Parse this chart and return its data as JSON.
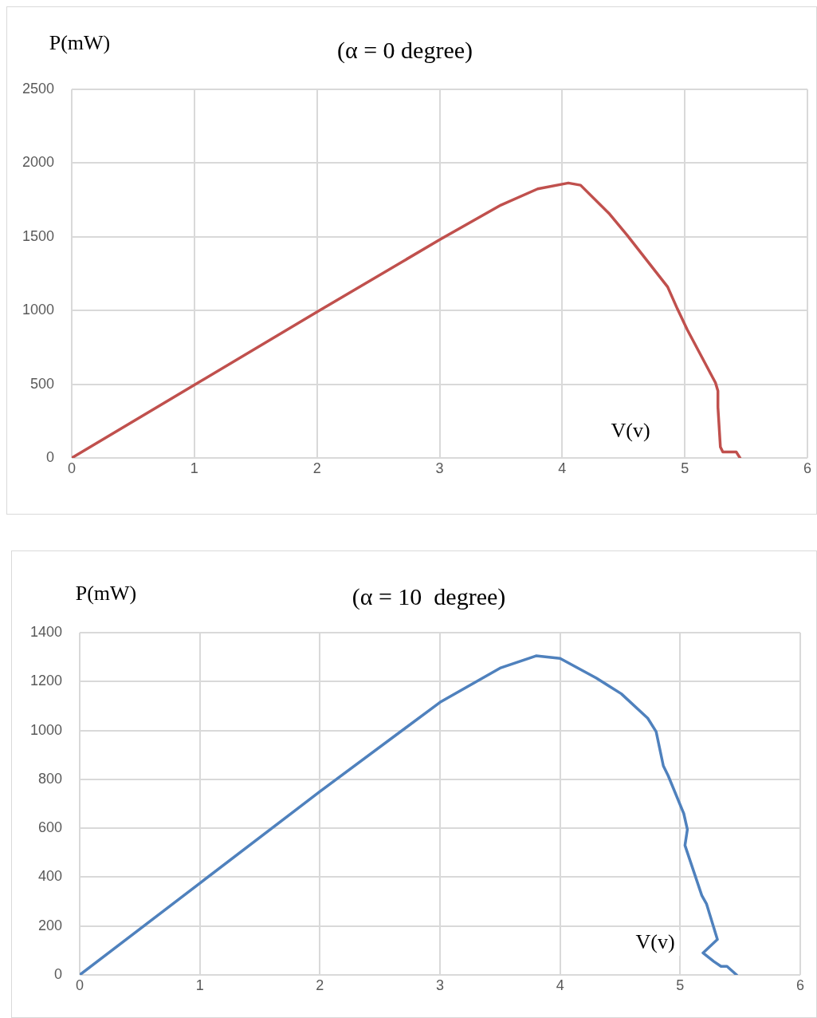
{
  "chart_data": [
    {
      "type": "line",
      "title": "(α = 0 degree)",
      "xlabel": "V(v)",
      "ylabel": "P(mW)",
      "xlim": [
        0,
        6
      ],
      "xticks": [
        0,
        1,
        2,
        3,
        4,
        5,
        6
      ],
      "ylim": [
        0,
        2500
      ],
      "yticks": [
        0,
        500,
        1000,
        1500,
        2000,
        2500
      ],
      "grid": true,
      "legend": false,
      "marker": "none",
      "line_style": "solid",
      "series": [
        {
          "color": "#c0504d",
          "x": [
            0,
            1,
            2,
            3,
            3.5,
            3.8,
            4.05,
            4.15,
            4.38,
            4.53,
            4.86,
            4.94,
            5.02,
            5.25,
            5.27,
            5.27,
            5.29,
            5.31,
            5.42,
            5.45
          ],
          "values": [
            0,
            495,
            990,
            1480,
            1715,
            1825,
            1865,
            1850,
            1660,
            1510,
            1160,
            1010,
            870,
            510,
            455,
            345,
            75,
            40,
            40,
            0
          ]
        }
      ]
    },
    {
      "type": "line",
      "title": "(α = 10  degree)",
      "xlabel": "V(v)",
      "ylabel": "P(mW)",
      "xlim": [
        0,
        6
      ],
      "xticks": [
        0,
        1,
        2,
        3,
        4,
        5,
        6
      ],
      "ylim": [
        0,
        1400
      ],
      "yticks": [
        0,
        200,
        400,
        600,
        800,
        1000,
        1200,
        1400
      ],
      "grid": true,
      "legend": false,
      "marker": "none",
      "line_style": "solid",
      "series": [
        {
          "color": "#4f81bd",
          "x": [
            0,
            1,
            2,
            3,
            3.5,
            3.8,
            4,
            4.3,
            4.51,
            4.73,
            4.8,
            4.86,
            4.9,
            5.03,
            5.06,
            5.04,
            5.18,
            5.22,
            5.31,
            5.19,
            5.28,
            5.34,
            5.39,
            5.47
          ],
          "values": [
            0,
            375,
            750,
            1115,
            1255,
            1305,
            1295,
            1215,
            1150,
            1050,
            995,
            855,
            815,
            660,
            595,
            530,
            325,
            290,
            145,
            90,
            55,
            35,
            35,
            0
          ]
        }
      ]
    }
  ]
}
